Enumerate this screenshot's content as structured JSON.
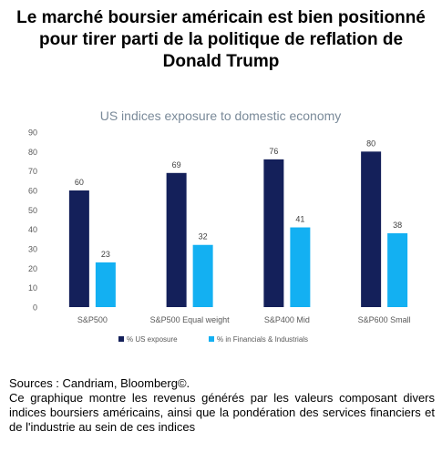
{
  "headline": "Le marché boursier américain est bien positionné pour tirer parti de la politique de reflation de Donald Trump",
  "footer": {
    "source": "Sources : Candriam, Bloomberg©.",
    "description": "Ce graphique montre les revenus générés par les valeurs composant divers indices boursiers américains, ainsi que la pondération des services financiers et de l'industrie au sein de ces indices"
  },
  "colors": {
    "series1": "#14205a",
    "series2": "#13b0f2",
    "title": "#7a8a99",
    "axis_text": "#595959",
    "label_text": "#404040"
  },
  "chart_data": {
    "type": "bar",
    "title": "US indices exposure to domestic economy",
    "categories": [
      "S&P500",
      "S&P500 Equal weight",
      "S&P400 Mid",
      "S&P600 Small"
    ],
    "series": [
      {
        "name": "% US exposure",
        "values": [
          60,
          69,
          76,
          80
        ]
      },
      {
        "name": "% in Financials & Industrials",
        "values": [
          23,
          32,
          41,
          38
        ]
      }
    ],
    "ylim": [
      0,
      90
    ],
    "yticks": [
      0,
      10,
      20,
      30,
      40,
      50,
      60,
      70,
      80,
      90
    ],
    "xlabel": "",
    "ylabel": "",
    "grid": false,
    "legend_position": "bottom-left",
    "data_labels": true
  }
}
